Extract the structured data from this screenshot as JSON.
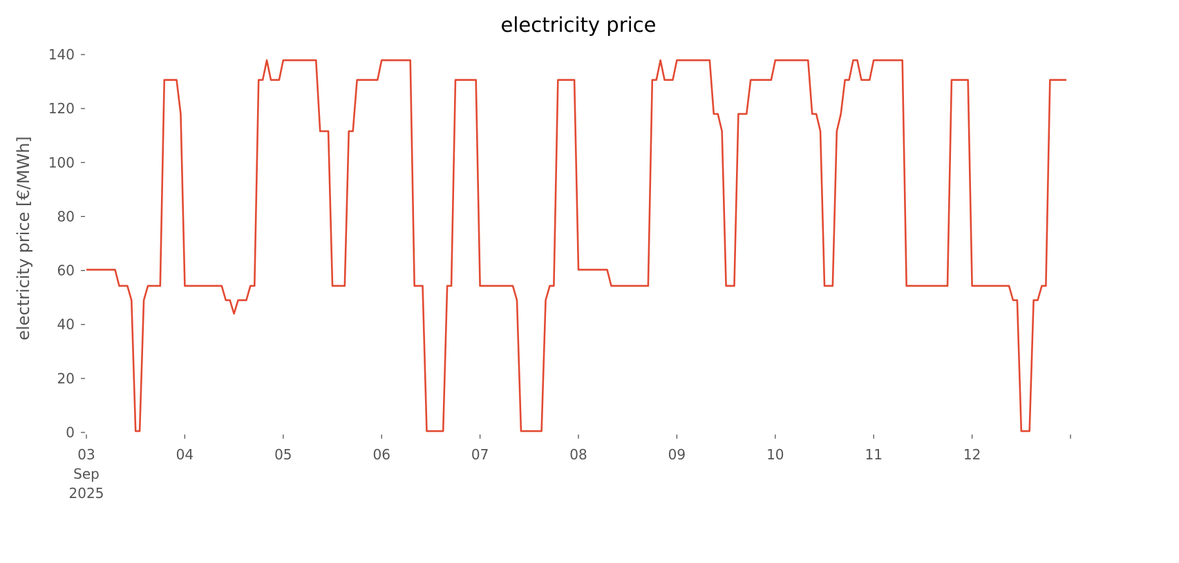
{
  "chart_data": {
    "type": "line",
    "title": "electricity price",
    "xlabel": "",
    "ylabel": "electricity price [€/MWh]",
    "ylim": [
      0,
      140
    ],
    "xlim": [
      "2025-09-03 00:00",
      "2025-09-13 00:00"
    ],
    "grid": false,
    "yticks": [
      0,
      20,
      40,
      60,
      80,
      100,
      120,
      140
    ],
    "xticks": [
      {
        "date": "2025-09-03 00:00",
        "lines": [
          "03",
          "Sep",
          "2025"
        ]
      },
      {
        "date": "2025-09-04 00:00",
        "lines": [
          "04"
        ]
      },
      {
        "date": "2025-09-05 00:00",
        "lines": [
          "05"
        ]
      },
      {
        "date": "2025-09-06 00:00",
        "lines": [
          "06"
        ]
      },
      {
        "date": "2025-09-07 00:00",
        "lines": [
          "07"
        ]
      },
      {
        "date": "2025-09-08 00:00",
        "lines": [
          "08"
        ]
      },
      {
        "date": "2025-09-09 00:00",
        "lines": [
          "09"
        ]
      },
      {
        "date": "2025-09-10 00:00",
        "lines": [
          "10"
        ]
      },
      {
        "date": "2025-09-11 00:00",
        "lines": [
          "11"
        ]
      },
      {
        "date": "2025-09-12 00:00",
        "lines": [
          "12"
        ]
      },
      {
        "date": "2025-09-13 00:00",
        "lines": []
      }
    ],
    "series": [
      {
        "color": "#E24A33",
        "points": [
          [
            "2025-09-03 00:00",
            60.3
          ],
          [
            "2025-09-03 07:00",
            60.3
          ],
          [
            "2025-09-03 08:00",
            54.3
          ],
          [
            "2025-09-03 10:00",
            54.3
          ],
          [
            "2025-09-03 11:00",
            49
          ],
          [
            "2025-09-03 12:00",
            0.5
          ],
          [
            "2025-09-03 13:00",
            0.5
          ],
          [
            "2025-09-03 14:00",
            49
          ],
          [
            "2025-09-03 15:00",
            54.3
          ],
          [
            "2025-09-03 18:00",
            54.3
          ],
          [
            "2025-09-03 19:00",
            130.6
          ],
          [
            "2025-09-03 22:00",
            130.6
          ],
          [
            "2025-09-03 23:00",
            118
          ],
          [
            "2025-09-04 00:00",
            54.3
          ],
          [
            "2025-09-04 09:00",
            54.3
          ],
          [
            "2025-09-04 10:00",
            49
          ],
          [
            "2025-09-04 11:00",
            49
          ],
          [
            "2025-09-04 12:00",
            44
          ],
          [
            "2025-09-04 13:00",
            49
          ],
          [
            "2025-09-04 15:00",
            49
          ],
          [
            "2025-09-04 16:00",
            54.3
          ],
          [
            "2025-09-04 17:00",
            54.3
          ],
          [
            "2025-09-04 18:00",
            130.6
          ],
          [
            "2025-09-04 19:00",
            130.6
          ],
          [
            "2025-09-04 20:00",
            137.9
          ],
          [
            "2025-09-04 21:00",
            130.6
          ],
          [
            "2025-09-04 23:00",
            130.6
          ],
          [
            "2025-09-05 00:00",
            137.9
          ],
          [
            "2025-09-05 08:00",
            137.9
          ],
          [
            "2025-09-05 09:00",
            111.6
          ],
          [
            "2025-09-05 11:00",
            111.6
          ],
          [
            "2025-09-05 12:00",
            54.3
          ],
          [
            "2025-09-05 15:00",
            54.3
          ],
          [
            "2025-09-05 16:00",
            111.6
          ],
          [
            "2025-09-05 17:00",
            111.6
          ],
          [
            "2025-09-05 18:00",
            130.6
          ],
          [
            "2025-09-05 23:00",
            130.6
          ],
          [
            "2025-09-06 00:00",
            137.9
          ],
          [
            "2025-09-06 07:00",
            137.9
          ],
          [
            "2025-09-06 08:00",
            54.3
          ],
          [
            "2025-09-06 10:00",
            54.3
          ],
          [
            "2025-09-06 11:00",
            0.5
          ],
          [
            "2025-09-06 15:00",
            0.5
          ],
          [
            "2025-09-06 16:00",
            54.3
          ],
          [
            "2025-09-06 17:00",
            54.3
          ],
          [
            "2025-09-06 18:00",
            130.6
          ],
          [
            "2025-09-06 23:00",
            130.6
          ],
          [
            "2025-09-07 00:00",
            54.3
          ],
          [
            "2025-09-07 08:00",
            54.3
          ],
          [
            "2025-09-07 09:00",
            49
          ],
          [
            "2025-09-07 10:00",
            0.5
          ],
          [
            "2025-09-07 15:00",
            0.5
          ],
          [
            "2025-09-07 16:00",
            49
          ],
          [
            "2025-09-07 17:00",
            54.3
          ],
          [
            "2025-09-07 18:00",
            54.3
          ],
          [
            "2025-09-07 19:00",
            130.6
          ],
          [
            "2025-09-07 23:00",
            130.6
          ],
          [
            "2025-09-08 00:00",
            60.3
          ],
          [
            "2025-09-08 07:00",
            60.3
          ],
          [
            "2025-09-08 08:00",
            54.3
          ],
          [
            "2025-09-08 17:00",
            54.3
          ],
          [
            "2025-09-08 18:00",
            130.6
          ],
          [
            "2025-09-08 19:00",
            130.6
          ],
          [
            "2025-09-08 20:00",
            137.9
          ],
          [
            "2025-09-08 21:00",
            130.6
          ],
          [
            "2025-09-08 23:00",
            130.6
          ],
          [
            "2025-09-09 00:00",
            137.9
          ],
          [
            "2025-09-09 08:00",
            137.9
          ],
          [
            "2025-09-09 09:00",
            118
          ],
          [
            "2025-09-09 10:00",
            118
          ],
          [
            "2025-09-09 11:00",
            111.6
          ],
          [
            "2025-09-09 12:00",
            54.3
          ],
          [
            "2025-09-09 14:00",
            54.3
          ],
          [
            "2025-09-09 15:00",
            118
          ],
          [
            "2025-09-09 17:00",
            118
          ],
          [
            "2025-09-09 18:00",
            130.6
          ],
          [
            "2025-09-09 23:00",
            130.6
          ],
          [
            "2025-09-10 00:00",
            137.9
          ],
          [
            "2025-09-10 08:00",
            137.9
          ],
          [
            "2025-09-10 09:00",
            118
          ],
          [
            "2025-09-10 10:00",
            118
          ],
          [
            "2025-09-10 11:00",
            111.6
          ],
          [
            "2025-09-10 12:00",
            54.3
          ],
          [
            "2025-09-10 14:00",
            54.3
          ],
          [
            "2025-09-10 15:00",
            111.6
          ],
          [
            "2025-09-10 16:00",
            118
          ],
          [
            "2025-09-10 17:00",
            130.6
          ],
          [
            "2025-09-10 18:00",
            130.6
          ],
          [
            "2025-09-10 19:00",
            137.9
          ],
          [
            "2025-09-10 20:00",
            137.9
          ],
          [
            "2025-09-10 21:00",
            130.6
          ],
          [
            "2025-09-10 23:00",
            130.6
          ],
          [
            "2025-09-11 00:00",
            137.9
          ],
          [
            "2025-09-11 07:00",
            137.9
          ],
          [
            "2025-09-11 08:00",
            54.3
          ],
          [
            "2025-09-11 18:00",
            54.3
          ],
          [
            "2025-09-11 19:00",
            130.6
          ],
          [
            "2025-09-11 23:00",
            130.6
          ],
          [
            "2025-09-12 00:00",
            54.3
          ],
          [
            "2025-09-12 09:00",
            54.3
          ],
          [
            "2025-09-12 10:00",
            49
          ],
          [
            "2025-09-12 11:00",
            49
          ],
          [
            "2025-09-12 12:00",
            0.5
          ],
          [
            "2025-09-12 14:00",
            0.5
          ],
          [
            "2025-09-12 15:00",
            49
          ],
          [
            "2025-09-12 16:00",
            49
          ],
          [
            "2025-09-12 17:00",
            54.3
          ],
          [
            "2025-09-12 18:00",
            54.3
          ],
          [
            "2025-09-12 19:00",
            130.6
          ],
          [
            "2025-09-12 23:00",
            130.6
          ]
        ]
      }
    ]
  }
}
